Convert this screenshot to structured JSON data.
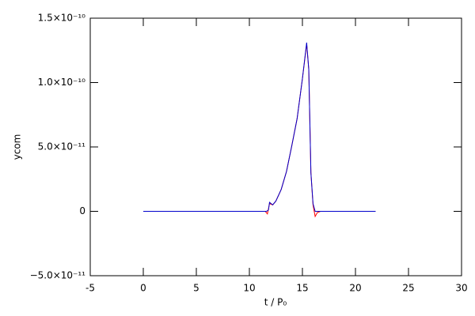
{
  "chart_data": {
    "type": "line",
    "x_label": "t / P₀",
    "y_label": "ycom",
    "xlim": [
      -5,
      30
    ],
    "ylim": [
      -5e-11,
      1.5e-10
    ],
    "xticks": [
      -5,
      0,
      5,
      10,
      15,
      20,
      25,
      30
    ],
    "yticks": [
      {
        "value": -5e-11,
        "label": "−5.0×10⁻¹¹"
      },
      0,
      {
        "value": 5e-11,
        "label": "5.0×10⁻¹¹"
      },
      {
        "value": 1e-10,
        "label": "1.0×10⁻¹⁰"
      },
      {
        "value": 1.5e-10,
        "label": "1.5×10⁻¹⁰"
      }
    ],
    "series": [
      {
        "color": "#ff0000",
        "x": [
          0,
          11.5,
          11.7,
          11.9,
          12.2,
          12.5,
          13,
          13.5,
          14,
          14.5,
          15,
          15.4,
          15.6,
          15.8,
          16.0,
          16.2,
          16.4,
          16.7,
          21.9
        ],
        "values": [
          0,
          0,
          -2e-12,
          6e-12,
          5e-12,
          8e-12,
          1.7e-11,
          3.1e-11,
          5.1e-11,
          7.2e-11,
          1.03e-10,
          1.3e-10,
          1.1e-10,
          3e-11,
          5e-12,
          -4e-12,
          -1e-12,
          0,
          0
        ]
      },
      {
        "color": "#0000cc",
        "x": [
          0,
          11.6,
          11.8,
          11.9,
          12.2,
          12.5,
          13,
          13.5,
          14,
          14.5,
          15,
          15.4,
          15.6,
          15.8,
          16.0,
          16.2,
          16.5,
          21.9
        ],
        "values": [
          0,
          0,
          1e-12,
          7e-12,
          5e-12,
          8e-12,
          1.7e-11,
          3.1e-11,
          5.1e-11,
          7.2e-11,
          1.03e-10,
          1.31e-10,
          1.1e-10,
          3e-11,
          6e-12,
          0,
          0,
          0
        ]
      }
    ]
  }
}
